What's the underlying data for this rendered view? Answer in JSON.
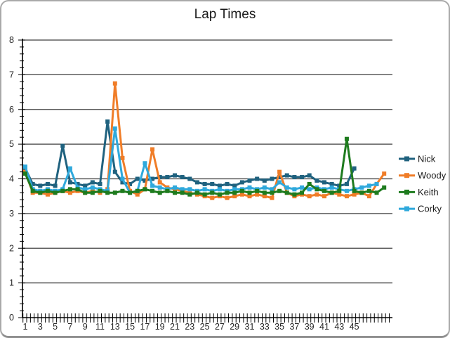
{
  "frame": {
    "title": "Lap Times"
  },
  "chart_data": {
    "type": "line",
    "title": "Lap Times",
    "xlabel": "",
    "ylabel": "",
    "x_tick_labels": [
      "1",
      "3",
      "5",
      "7",
      "9",
      "11",
      "13",
      "15",
      "17",
      "19",
      "21",
      "23",
      "25",
      "27",
      "29",
      "31",
      "33",
      "35",
      "37",
      "39",
      "41",
      "43",
      "45"
    ],
    "x_label_interval": 2,
    "x_total_categories": 49,
    "ylim": [
      0,
      8
    ],
    "y_tick_labels": [
      "0",
      "1",
      "2",
      "3",
      "4",
      "5",
      "6",
      "7",
      "8"
    ],
    "y_minor_tick": 0.2,
    "grid": "horizontal-major",
    "gridline_color": "#3f3f3f",
    "axis_color": "#000000",
    "tick_label_color": "#262626",
    "legend_position": "right",
    "marker": "square",
    "series": [
      {
        "name": "Nick",
        "color": "#20627F",
        "start_lap": 1,
        "values": [
          4.3,
          3.85,
          3.8,
          3.85,
          3.8,
          4.95,
          3.9,
          3.85,
          3.8,
          3.9,
          3.85,
          5.65,
          4.2,
          3.9,
          3.85,
          4.0,
          3.95,
          4.0,
          4.05,
          4.05,
          4.1,
          4.05,
          4.0,
          3.9,
          3.85,
          3.85,
          3.8,
          3.85,
          3.8,
          3.9,
          3.95,
          4.0,
          3.95,
          4.0,
          4.05,
          4.1,
          4.05,
          4.05,
          4.1,
          3.95,
          3.9,
          3.85,
          3.8,
          3.85,
          4.3
        ]
      },
      {
        "name": "Woody",
        "color": "#F07D28",
        "start_lap": 1,
        "values": [
          4.2,
          3.6,
          3.6,
          3.55,
          3.6,
          3.65,
          3.6,
          3.65,
          3.6,
          3.65,
          3.6,
          3.7,
          6.75,
          4.6,
          3.65,
          3.55,
          3.7,
          4.85,
          3.9,
          3.75,
          3.7,
          3.65,
          3.6,
          3.55,
          3.5,
          3.45,
          3.5,
          3.45,
          3.5,
          3.55,
          3.5,
          3.55,
          3.5,
          3.45,
          4.2,
          3.6,
          3.5,
          3.55,
          3.5,
          3.55,
          3.5,
          3.6,
          3.55,
          3.5,
          3.55,
          3.6,
          3.5,
          3.85,
          4.15
        ]
      },
      {
        "name": "Keith",
        "color": "#1E7B1E",
        "start_lap": 1,
        "values": [
          4.15,
          3.65,
          3.6,
          3.65,
          3.6,
          3.65,
          3.7,
          3.7,
          3.6,
          3.6,
          3.65,
          3.6,
          3.6,
          3.65,
          3.6,
          3.65,
          3.7,
          3.65,
          3.6,
          3.65,
          3.6,
          3.6,
          3.55,
          3.6,
          3.55,
          3.6,
          3.55,
          3.6,
          3.6,
          3.65,
          3.6,
          3.65,
          3.6,
          3.6,
          3.65,
          3.6,
          3.55,
          3.6,
          3.85,
          3.7,
          3.65,
          3.6,
          3.65,
          5.15,
          3.65,
          3.6,
          3.65,
          3.6,
          3.75
        ]
      },
      {
        "name": "Corky",
        "color": "#2FA9DC",
        "start_lap": 1,
        "values": [
          4.35,
          3.7,
          3.65,
          3.7,
          3.65,
          3.7,
          4.3,
          3.75,
          3.7,
          3.75,
          3.7,
          3.65,
          5.45,
          4.0,
          3.6,
          3.65,
          4.45,
          3.8,
          3.75,
          3.7,
          3.75,
          3.7,
          3.7,
          3.65,
          3.7,
          3.65,
          3.7,
          3.65,
          3.7,
          3.7,
          3.75,
          3.7,
          3.75,
          3.7,
          3.9,
          3.75,
          3.7,
          3.75,
          3.7,
          3.75,
          3.7,
          3.75,
          3.7,
          3.65,
          3.7,
          3.75,
          3.8,
          3.85
        ]
      }
    ],
    "draw_order": [
      "Nick",
      "Woody",
      "Corky",
      "Keith"
    ]
  }
}
